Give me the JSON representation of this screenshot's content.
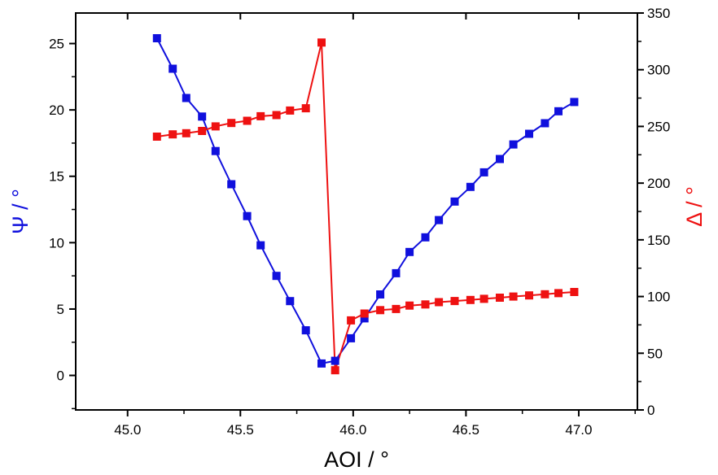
{
  "chart_data": {
    "type": "line",
    "xlabel": "AOI / °",
    "ylabel_left": "Ψ / °",
    "ylabel_right": "Δ / °",
    "xlim": [
      44.77,
      47.26
    ],
    "ylim_left": [
      -2.6,
      27.3
    ],
    "ylim_right": [
      0,
      350
    ],
    "x_ticks": [
      45.0,
      45.5,
      46.0,
      46.5,
      47.0
    ],
    "x_tick_labels": [
      "45.0",
      "45.5",
      "46.0",
      "46.5",
      "47.0"
    ],
    "y_left_ticks": [
      0,
      5,
      10,
      15,
      20,
      25
    ],
    "y_left_tick_labels": [
      "0",
      "5",
      "10",
      "15",
      "20",
      "25"
    ],
    "y_right_ticks": [
      0,
      50,
      100,
      150,
      200,
      250,
      300,
      350
    ],
    "y_right_tick_labels": [
      "0",
      "50",
      "100",
      "150",
      "200",
      "250",
      "300",
      "350"
    ],
    "grid": false,
    "colors": {
      "psi": "#1010dd",
      "delta": "#ee1111",
      "axis": "#000000"
    },
    "series": [
      {
        "name": "Ψ",
        "axis": "left",
        "color": "#1010dd",
        "x": [
          45.13,
          45.2,
          45.26,
          45.33,
          45.39,
          45.46,
          45.53,
          45.59,
          45.66,
          45.72,
          45.79,
          45.86,
          45.92,
          45.99,
          46.05,
          46.12,
          46.19,
          46.25,
          46.32,
          46.38,
          46.45,
          46.52,
          46.58,
          46.65,
          46.71,
          46.78,
          46.85,
          46.91,
          46.98
        ],
        "y": [
          25.4,
          23.1,
          20.9,
          19.5,
          16.9,
          14.4,
          12.0,
          9.8,
          7.5,
          5.6,
          3.4,
          0.9,
          1.1,
          2.8,
          4.3,
          6.1,
          7.7,
          9.3,
          10.4,
          11.7,
          13.1,
          14.2,
          15.3,
          16.3,
          17.4,
          18.2,
          19.0,
          19.9,
          20.6
        ]
      },
      {
        "name": "Δ",
        "axis": "right",
        "color": "#ee1111",
        "x": [
          45.13,
          45.2,
          45.26,
          45.33,
          45.39,
          45.46,
          45.53,
          45.59,
          45.66,
          45.72,
          45.79,
          45.86,
          45.92,
          45.99,
          46.05,
          46.12,
          46.19,
          46.25,
          46.32,
          46.38,
          46.45,
          46.52,
          46.58,
          46.65,
          46.71,
          46.78,
          46.85,
          46.91,
          46.98
        ],
        "y": [
          241,
          243,
          244,
          246,
          250,
          253,
          255,
          259,
          260,
          264,
          266,
          324,
          35,
          79,
          85,
          88,
          89,
          92,
          93,
          95,
          96,
          97,
          98,
          99,
          100,
          101,
          102,
          103,
          104
        ]
      }
    ]
  }
}
